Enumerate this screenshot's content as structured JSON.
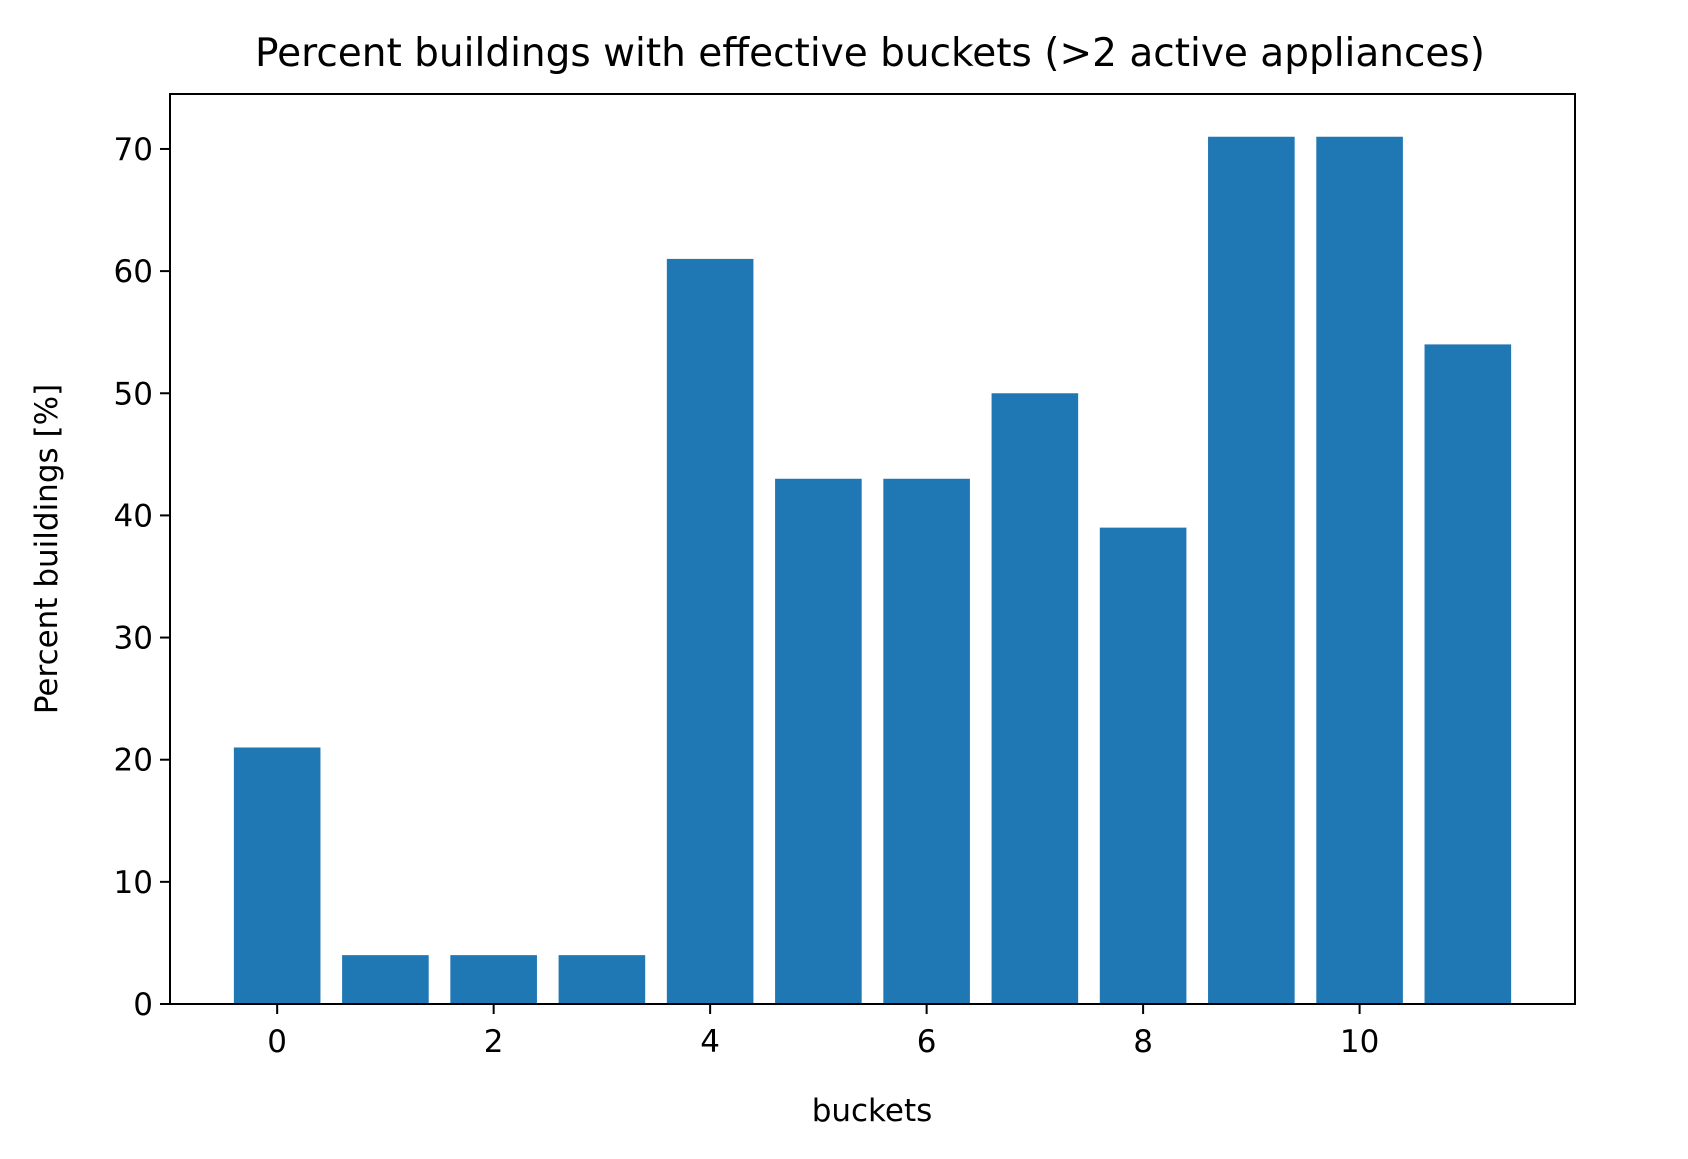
{
  "chart_data": {
    "type": "bar",
    "title": "Percent buildings with effective buckets (>2 active appliances)",
    "xlabel": "buckets",
    "ylabel": "Percent buildings [%]",
    "categories": [
      0,
      1,
      2,
      3,
      4,
      5,
      6,
      7,
      8,
      9,
      10,
      11
    ],
    "values": [
      21,
      4,
      4,
      4,
      61,
      43,
      43,
      50,
      39,
      71,
      71,
      54
    ],
    "xlim": [
      -0.99,
      11.99
    ],
    "ylim": [
      0,
      74.5
    ],
    "xticks": [
      "0",
      "2",
      "4",
      "6",
      "8",
      "10"
    ],
    "yticks": [
      "0",
      "10",
      "20",
      "30",
      "40",
      "50",
      "60",
      "70"
    ],
    "bar_color": "#1f77b4",
    "grid": false,
    "legend": "none"
  }
}
